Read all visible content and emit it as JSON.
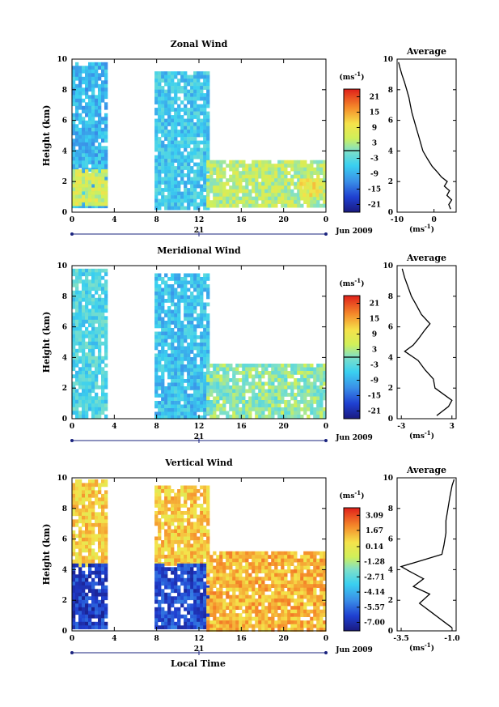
{
  "page": {
    "xlabel": "Local Time",
    "date_label": "Jun 2009",
    "day_label": "21"
  },
  "chart_data": [
    {
      "type": "heatmap",
      "title": "Zonal Wind",
      "ylabel": "Height (km)",
      "xlim": [
        0,
        24
      ],
      "ylim": [
        0,
        10
      ],
      "xticks": [
        "0",
        "4",
        "8",
        "12",
        "16",
        "20",
        "0"
      ],
      "yticks": [
        "0",
        "2",
        "4",
        "6",
        "8",
        "10"
      ],
      "colorbar": {
        "unit": "(ms",
        "unit_sup": "-1",
        "unit_close": ")",
        "range": [
          -24,
          24
        ],
        "tick_labels": [
          "21",
          "15",
          "9",
          "3",
          "-3",
          "-9",
          "-15",
          "-21"
        ],
        "tick_values": [
          21,
          15,
          9,
          3,
          -3,
          -9,
          -15,
          -21
        ],
        "zero_line": 0
      },
      "profile": {
        "title": "Average",
        "xlim": [
          -10,
          6
        ],
        "xticks": [
          "-10",
          "0"
        ],
        "xtick_values": [
          -10,
          0
        ],
        "ylim": [
          0,
          10
        ],
        "yticks": [
          "0",
          "2",
          "4",
          "6",
          "8",
          "10"
        ],
        "xlabel": "(ms",
        "xlabel_sup": "-1",
        "xlabel_close": ")",
        "points": [
          [
            4.5,
            0.2
          ],
          [
            4.0,
            0.5
          ],
          [
            4.8,
            0.8
          ],
          [
            3.5,
            1.1
          ],
          [
            4.2,
            1.4
          ],
          [
            2.8,
            1.7
          ],
          [
            3.6,
            2.0
          ],
          [
            2.0,
            2.3
          ],
          [
            1.0,
            2.6
          ],
          [
            -0.5,
            3.0
          ],
          [
            -1.8,
            3.5
          ],
          [
            -3.0,
            4.0
          ],
          [
            -3.6,
            4.5
          ],
          [
            -4.2,
            5.0
          ],
          [
            -4.8,
            5.5
          ],
          [
            -5.4,
            6.0
          ],
          [
            -6.0,
            6.5
          ],
          [
            -6.4,
            7.0
          ],
          [
            -6.8,
            7.5
          ],
          [
            -7.4,
            8.0
          ],
          [
            -8.0,
            8.5
          ],
          [
            -8.7,
            9.0
          ],
          [
            -9.3,
            9.5
          ],
          [
            -9.6,
            9.8
          ]
        ]
      },
      "data_regions": [
        {
          "x": [
            0,
            3.3
          ],
          "y": [
            0.3,
            9.8
          ],
          "mean": -8
        },
        {
          "x": [
            0,
            3.3
          ],
          "y": [
            0.6,
            2.8
          ],
          "mean": 6
        },
        {
          "x": [
            7.8,
            12.7
          ],
          "y": [
            0.3,
            9.2
          ],
          "mean": -6
        },
        {
          "x": [
            12.7,
            24
          ],
          "y": [
            0.5,
            3.4
          ],
          "mean": 4
        },
        {
          "x": [
            21.5,
            23.5
          ],
          "y": [
            1.1,
            2.2
          ],
          "mean": 9
        }
      ]
    },
    {
      "type": "heatmap",
      "title": "Meridional Wind",
      "ylabel": "Height (km)",
      "xlim": [
        0,
        24
      ],
      "ylim": [
        0,
        10
      ],
      "xticks": [
        "0",
        "4",
        "8",
        "12",
        "16",
        "20",
        "0"
      ],
      "yticks": [
        "0",
        "2",
        "4",
        "6",
        "8",
        "10"
      ],
      "colorbar": {
        "unit": "(ms",
        "unit_sup": "-1",
        "unit_close": ")",
        "range": [
          -24,
          24
        ],
        "tick_labels": [
          "21",
          "15",
          "9",
          "3",
          "-3",
          "-9",
          "-15",
          "-21"
        ],
        "tick_values": [
          21,
          15,
          9,
          3,
          -3,
          -9,
          -15,
          -21
        ],
        "zero_line": 0
      },
      "profile": {
        "title": "Average",
        "xlim": [
          -3.5,
          3.5
        ],
        "xticks": [
          "-3",
          "3"
        ],
        "xtick_values": [
          -3,
          3
        ],
        "ylim": [
          0,
          10
        ],
        "yticks": [
          "0",
          "2",
          "4",
          "6",
          "8",
          "10"
        ],
        "xlabel": "(ms",
        "xlabel_sup": "-1",
        "xlabel_close": ")",
        "points": [
          [
            1.2,
            0.2
          ],
          [
            2.6,
            0.8
          ],
          [
            3.0,
            1.2
          ],
          [
            2.0,
            1.6
          ],
          [
            1.0,
            2.0
          ],
          [
            0.8,
            2.6
          ],
          [
            -0.2,
            3.2
          ],
          [
            -1.0,
            3.8
          ],
          [
            -2.6,
            4.4
          ],
          [
            -1.6,
            4.8
          ],
          [
            -1.0,
            5.2
          ],
          [
            -0.2,
            5.8
          ],
          [
            0.4,
            6.2
          ],
          [
            -0.6,
            6.8
          ],
          [
            -1.2,
            7.4
          ],
          [
            -1.8,
            8.0
          ],
          [
            -2.2,
            8.6
          ],
          [
            -2.6,
            9.2
          ],
          [
            -2.9,
            9.8
          ]
        ]
      },
      "data_regions": [
        {
          "x": [
            0,
            3.3
          ],
          "y": [
            0.2,
            9.8
          ],
          "mean": -4
        },
        {
          "x": [
            7.8,
            12.7
          ],
          "y": [
            0.2,
            9.5
          ],
          "mean": -7
        },
        {
          "x": [
            12.7,
            24
          ],
          "y": [
            0.2,
            3.6
          ],
          "mean": 1
        }
      ]
    },
    {
      "type": "heatmap",
      "title": "Vertical Wind",
      "ylabel": "Height (km)",
      "xlim": [
        0,
        24
      ],
      "ylim": [
        0,
        10
      ],
      "xticks": [
        "0",
        "4",
        "8",
        "12",
        "16",
        "20",
        "0"
      ],
      "yticks": [
        "0",
        "2",
        "4",
        "6",
        "8",
        "10"
      ],
      "colorbar": {
        "unit": "(ms",
        "unit_sup": "-1",
        "unit_close": ")",
        "range": [
          -7.8,
          3.8
        ],
        "tick_labels": [
          "3.09",
          "1.67",
          "0.14",
          "-1.28",
          "-2.71",
          "-4.14",
          "-5.57",
          "-7.00"
        ],
        "tick_values": [
          3.09,
          1.67,
          0.14,
          -1.28,
          -2.71,
          -4.14,
          -5.57,
          -7.0
        ],
        "zero_line": null
      },
      "profile": {
        "title": "Average",
        "xlim": [
          -3.7,
          -0.8
        ],
        "xticks": [
          "-3.5",
          "-1.0"
        ],
        "xtick_values": [
          -3.5,
          -1.0
        ],
        "ylim": [
          0,
          10
        ],
        "yticks": [
          "0",
          "2",
          "4",
          "6",
          "8",
          "10"
        ],
        "xlabel": "(ms",
        "xlabel_sup": "-1",
        "xlabel_close": ")",
        "points": [
          [
            -1.0,
            0.2
          ],
          [
            -1.4,
            0.6
          ],
          [
            -2.0,
            1.2
          ],
          [
            -2.6,
            1.8
          ],
          [
            -2.1,
            2.4
          ],
          [
            -2.9,
            2.9
          ],
          [
            -2.4,
            3.4
          ],
          [
            -3.1,
            3.9
          ],
          [
            -3.5,
            4.2
          ],
          [
            -2.5,
            4.6
          ],
          [
            -1.5,
            5.0
          ],
          [
            -1.4,
            5.6
          ],
          [
            -1.3,
            6.4
          ],
          [
            -1.3,
            7.2
          ],
          [
            -1.2,
            8.0
          ],
          [
            -1.1,
            8.8
          ],
          [
            -1.0,
            9.5
          ],
          [
            -0.9,
            9.9
          ]
        ]
      },
      "data_regions": [
        {
          "x": [
            0,
            3.3
          ],
          "y": [
            4.4,
            9.9
          ],
          "mean": 0.8
        },
        {
          "x": [
            0,
            3.3
          ],
          "y": [
            0.2,
            4.4
          ],
          "mean": -6.5
        },
        {
          "x": [
            7.8,
            12.7
          ],
          "y": [
            4.4,
            9.5
          ],
          "mean": 0.9
        },
        {
          "x": [
            7.8,
            12.7
          ],
          "y": [
            0.2,
            4.4
          ],
          "mean": -6.2
        },
        {
          "x": [
            12.7,
            24
          ],
          "y": [
            0.1,
            5.2
          ],
          "mean": 1.3
        }
      ]
    }
  ]
}
